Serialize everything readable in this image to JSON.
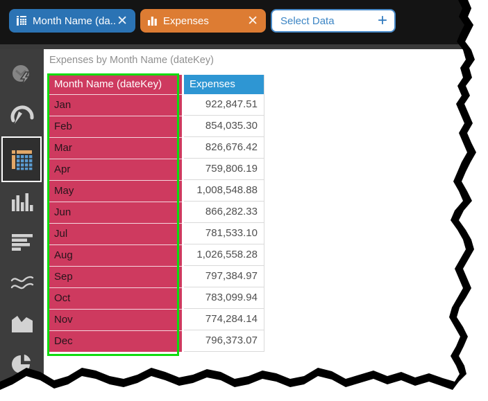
{
  "toolbar": {
    "chips": [
      {
        "label": "Month Name (da...",
        "role": "dimension",
        "close_icon": "x",
        "bg": "#2b73b4"
      },
      {
        "label": "Expenses",
        "role": "measure",
        "close_icon": "x",
        "bg": "#dd7c33"
      },
      {
        "label": "Select Data",
        "role": "add",
        "add_icon": "+",
        "bg": "#ffffff"
      }
    ]
  },
  "sidebar": {
    "items": [
      {
        "id": "smart-insight",
        "selected": false
      },
      {
        "id": "gauge-chart",
        "selected": false
      },
      {
        "id": "table-visual",
        "selected": true
      },
      {
        "id": "column-chart",
        "selected": false
      },
      {
        "id": "bar-chart",
        "selected": false
      },
      {
        "id": "line-chart",
        "selected": false
      },
      {
        "id": "area-chart",
        "selected": false
      },
      {
        "id": "pie-chart",
        "selected": false
      }
    ]
  },
  "main": {
    "title": "Expenses by Month Name (dateKey)",
    "table": {
      "columns": [
        "Month Name (dateKey)",
        "Expenses"
      ],
      "rows": [
        [
          "Jan",
          "922,847.51"
        ],
        [
          "Feb",
          "854,035.30"
        ],
        [
          "Mar",
          "826,676.42"
        ],
        [
          "Apr",
          "759,806.19"
        ],
        [
          "May",
          "1,008,548.88"
        ],
        [
          "Jun",
          "866,282.33"
        ],
        [
          "Jul",
          "781,533.10"
        ],
        [
          "Aug",
          "1,026,558.28"
        ],
        [
          "Sep",
          "797,384.97"
        ],
        [
          "Oct",
          "783,099.94"
        ],
        [
          "Nov",
          "774,284.14"
        ],
        [
          "Dec",
          "796,373.07"
        ]
      ]
    }
  },
  "colors": {
    "dimension_chip": "#2b73b4",
    "measure_chip": "#dd7c33",
    "dimension_column": "#ce3a5f",
    "measure_header": "#2e96d3",
    "selection_green": "#0fdc0f",
    "topbar": "#141414",
    "sidebar": "#3d3d3d"
  }
}
